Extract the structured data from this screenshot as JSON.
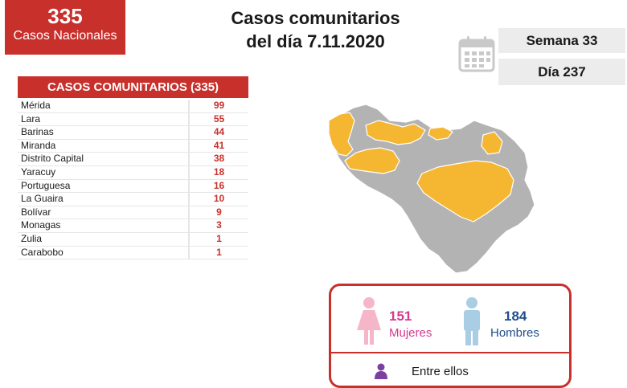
{
  "national": {
    "count": "335",
    "label": "Casos Nacionales"
  },
  "title": {
    "line1": "Casos comunitarios",
    "line2": "del día 7.11.2020"
  },
  "week": "Semana 33",
  "day": "Día 237",
  "table": {
    "header": "CASOS COMUNITARIOS (335)",
    "rows": [
      {
        "state": "Mérida",
        "cases": "99"
      },
      {
        "state": "Lara",
        "cases": "55"
      },
      {
        "state": "Barinas",
        "cases": "44"
      },
      {
        "state": "Miranda",
        "cases": "41"
      },
      {
        "state": "Distrito Capital",
        "cases": "38"
      },
      {
        "state": "Yaracuy",
        "cases": "18"
      },
      {
        "state": "Portuguesa",
        "cases": "16"
      },
      {
        "state": "La Guaira",
        "cases": "10"
      },
      {
        "state": "Bolívar",
        "cases": "9"
      },
      {
        "state": "Monagas",
        "cases": "3"
      },
      {
        "state": "Zulia",
        "cases": "1"
      },
      {
        "state": "Carabobo",
        "cases": "1"
      }
    ]
  },
  "gender": {
    "female": {
      "count": "151",
      "label": "Mujeres"
    },
    "male": {
      "count": "184",
      "label": "Hombres"
    },
    "among": "Entre ellos"
  },
  "colors": {
    "brand_red": "#c8302c",
    "female_pink": "#d6398f",
    "male_blue": "#1f4e8c",
    "map_highlight": "#f5b731",
    "map_base": "#b3b3b3"
  },
  "icons": {
    "calendar": "calendar-icon",
    "female": "female-icon",
    "male": "male-icon",
    "person": "person-icon"
  }
}
